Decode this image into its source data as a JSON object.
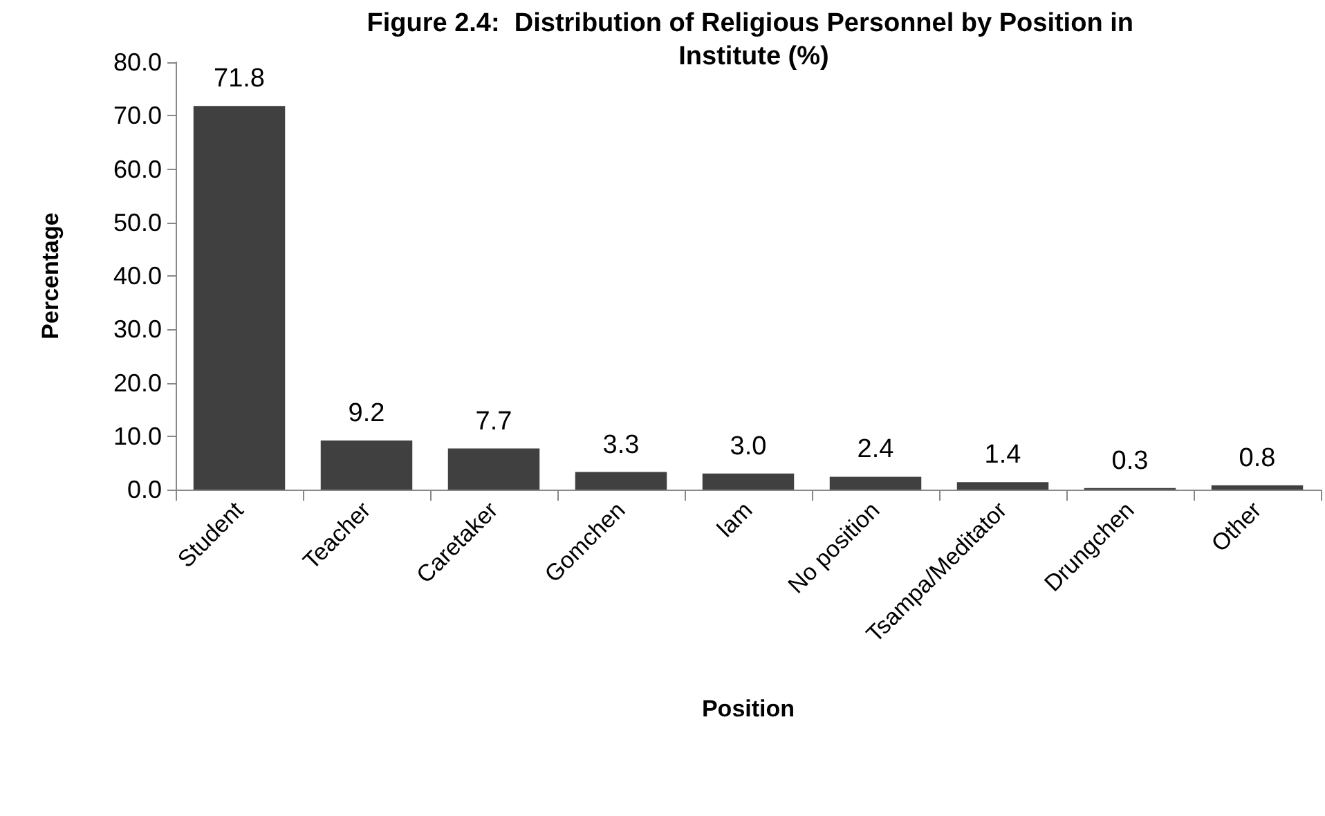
{
  "chart_data": {
    "type": "bar",
    "title": "Figure 2.4:  Distribution of Religious Personnel by Position in Institute (%)",
    "xlabel": "Position",
    "ylabel": "Percentage",
    "categories": [
      "Student",
      "Teacher",
      "Caretaker",
      "Gomchen",
      "lam",
      "No position",
      "Tsampa/Meditator",
      "Drungchen",
      "Other"
    ],
    "values": [
      71.8,
      9.2,
      7.7,
      3.3,
      3.0,
      2.4,
      1.4,
      0.3,
      0.8
    ],
    "value_labels": [
      "71.8",
      "9.2",
      "7.7",
      "3.3",
      "3.0",
      "2.4",
      "1.4",
      "0.3",
      "0.8"
    ],
    "color": "#404040",
    "ylim": [
      0,
      80
    ],
    "yticks": [
      {
        "value": 0,
        "label": "0.0"
      },
      {
        "value": 10,
        "label": "10.0"
      },
      {
        "value": 20,
        "label": "20.0"
      },
      {
        "value": 30,
        "label": "30.0"
      },
      {
        "value": 40,
        "label": "40.0"
      },
      {
        "value": 50,
        "label": "50.0"
      },
      {
        "value": 60,
        "label": "60.0"
      },
      {
        "value": 70,
        "label": "70.0"
      },
      {
        "value": 80,
        "label": "80.0"
      }
    ],
    "grid": false
  }
}
